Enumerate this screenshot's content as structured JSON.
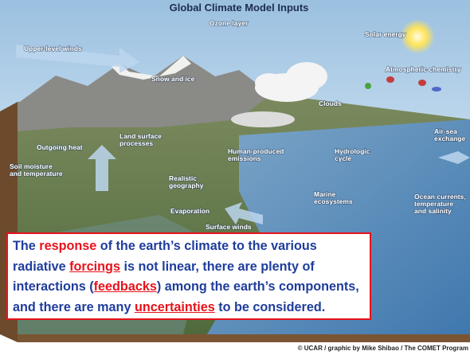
{
  "figure": {
    "title": "Global Climate Model Inputs",
    "labels": [
      {
        "lines": [
          "Ozone layer"
        ]
      },
      {
        "lines": [
          "Solar energy"
        ]
      },
      {
        "lines": [
          "Upper-level winds"
        ]
      },
      {
        "lines": [
          "Atmospheric chemistry"
        ]
      },
      {
        "lines": [
          "Snow and ice"
        ]
      },
      {
        "lines": [
          "Clouds"
        ]
      },
      {
        "lines": [
          "Air-sea",
          "exchange"
        ]
      },
      {
        "lines": [
          "Outgoing heat"
        ]
      },
      {
        "lines": [
          "Land surface",
          "processes"
        ]
      },
      {
        "lines": [
          "Human-produced",
          "emissions"
        ]
      },
      {
        "lines": [
          "Hydrologic",
          "cycle"
        ]
      },
      {
        "lines": [
          "Soil moisture",
          "and temperature"
        ]
      },
      {
        "lines": [
          "Realistic",
          "geography"
        ]
      },
      {
        "lines": [
          "Marine",
          "ecosystems"
        ]
      },
      {
        "lines": [
          "Ocean currents,",
          "temperature",
          "and salinity"
        ]
      },
      {
        "lines": [
          "Evaporation"
        ]
      },
      {
        "lines": [
          "Surface winds"
        ]
      }
    ],
    "credit": "© UCAR / graphic by Mike Shibao / The COMET Program"
  },
  "callout": {
    "lines": [
      [
        {
          "text": "The "
        },
        {
          "text": "response",
          "emphasis": true
        },
        {
          "text": " of the earth’s climate to the various"
        }
      ],
      [
        {
          "text": "radiative "
        },
        {
          "text": "forcings",
          "emphasis": true,
          "underline": true
        },
        {
          "text": " is not linear, there are plenty of"
        }
      ],
      [
        {
          "text": "interactions ("
        },
        {
          "text": "feedbacks",
          "emphasis": true,
          "underline": true
        },
        {
          "text": ") among the earth’s components,"
        }
      ],
      [
        {
          "text": "and there are many "
        },
        {
          "text": "uncertainties",
          "emphasis": true,
          "underline": true
        },
        {
          "text": " to be considered."
        }
      ]
    ]
  }
}
